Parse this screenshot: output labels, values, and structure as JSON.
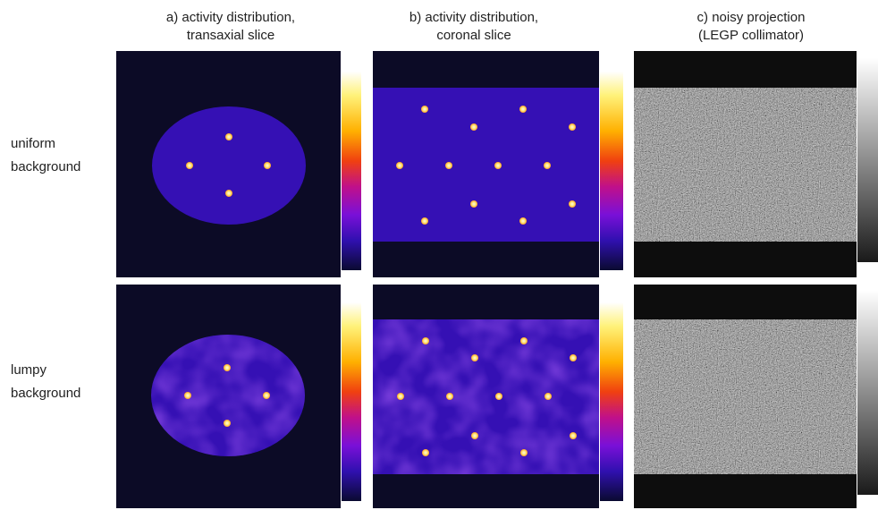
{
  "columns": [
    {
      "lines": [
        "a) activity distribution,",
        "transaxial slice"
      ]
    },
    {
      "lines": [
        "b) activity distribution,",
        "coronal slice"
      ]
    },
    {
      "lines": [
        "c) noisy projection",
        "(LEGP collimator)"
      ]
    }
  ],
  "rows": [
    {
      "lines": [
        "uniform",
        "background"
      ]
    },
    {
      "lines": [
        "lumpy",
        "background"
      ]
    }
  ]
}
